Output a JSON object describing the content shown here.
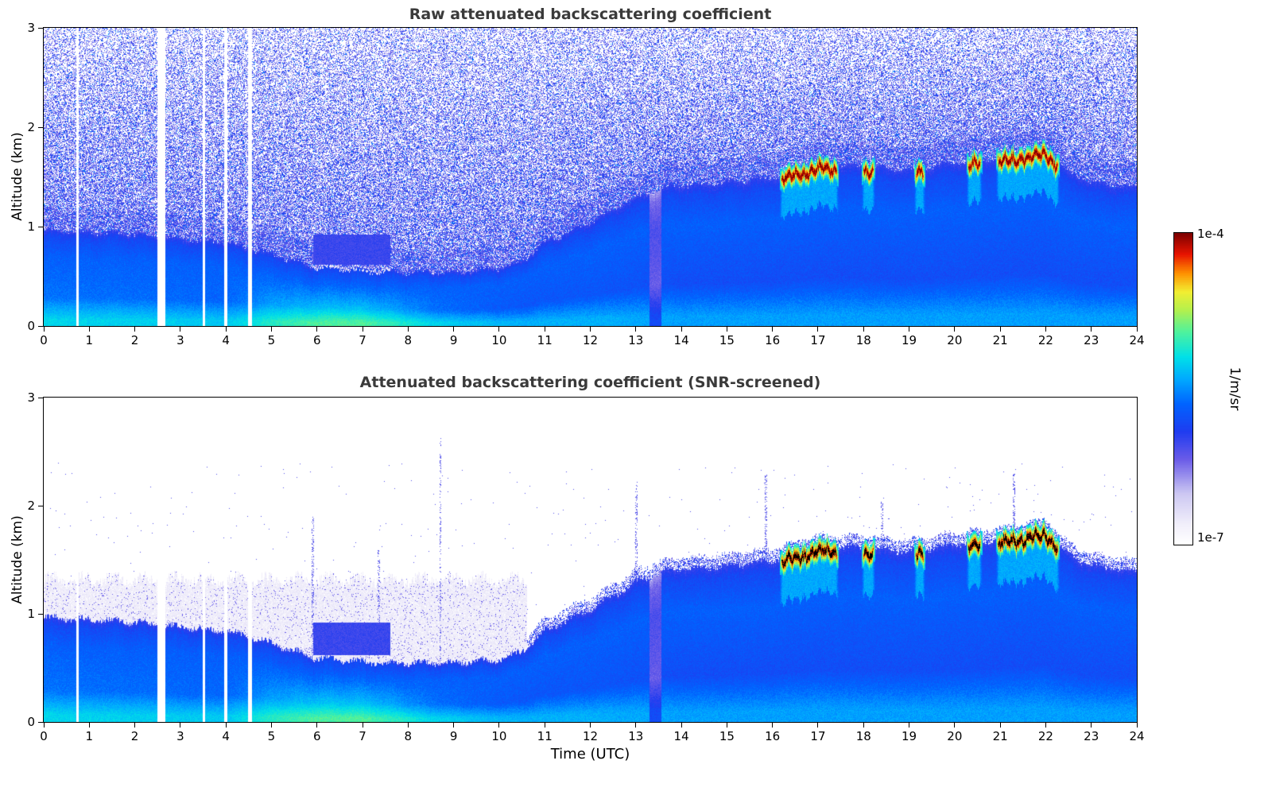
{
  "xlabel": "Time (UTC)",
  "colorbar": {
    "label": "1/m/sr",
    "top_label": "1e-4",
    "bottom_label": "1e-7",
    "scale": "log"
  },
  "chart_data": [
    {
      "type": "heatmap",
      "title": "Raw attenuated backscattering coefficient",
      "ylabel": "Altitude (km)",
      "xlim": [
        0,
        24
      ],
      "ylim": [
        0,
        3
      ],
      "x_ticks": [
        0,
        1,
        2,
        3,
        4,
        5,
        6,
        7,
        8,
        9,
        10,
        11,
        12,
        13,
        14,
        15,
        16,
        17,
        18,
        19,
        20,
        21,
        22,
        23,
        24
      ],
      "y_ticks": [
        0,
        1,
        2,
        3
      ],
      "colorscale": {
        "min": "1e-7",
        "max": "1e-4",
        "units": "1/m/sr",
        "scale": "log"
      },
      "screened": false,
      "seed": 7
    },
    {
      "type": "heatmap",
      "title": "Attenuated backscattering coefficient (SNR-screened)",
      "ylabel": "Altitude (km)",
      "xlim": [
        0,
        24
      ],
      "ylim": [
        0,
        3
      ],
      "x_ticks": [
        0,
        1,
        2,
        3,
        4,
        5,
        6,
        7,
        8,
        9,
        10,
        11,
        12,
        13,
        14,
        15,
        16,
        17,
        18,
        19,
        20,
        21,
        22,
        23,
        24
      ],
      "y_ticks": [
        0,
        1,
        2,
        3
      ],
      "colorscale": {
        "min": "1e-7",
        "max": "1e-4",
        "units": "1/m/sr",
        "scale": "log"
      },
      "screened": true,
      "seed": 99
    }
  ],
  "field_model": {
    "bl_top_km": [
      [
        0,
        0.97
      ],
      [
        1,
        0.95
      ],
      [
        2,
        0.93
      ],
      [
        3,
        0.88
      ],
      [
        4,
        0.85
      ],
      [
        5,
        0.73
      ],
      [
        5.8,
        0.62
      ],
      [
        7,
        0.58
      ],
      [
        8,
        0.55
      ],
      [
        9,
        0.55
      ],
      [
        10,
        0.58
      ],
      [
        10.5,
        0.66
      ],
      [
        11,
        0.85
      ],
      [
        12,
        1.05
      ],
      [
        13,
        1.3
      ],
      [
        13.6,
        1.4
      ],
      [
        14,
        1.42
      ],
      [
        15,
        1.45
      ],
      [
        16,
        1.5
      ],
      [
        17,
        1.63
      ],
      [
        18,
        1.62
      ],
      [
        19,
        1.58
      ],
      [
        20,
        1.65
      ],
      [
        21,
        1.7
      ],
      [
        22,
        1.78
      ],
      [
        22.5,
        1.55
      ],
      [
        23,
        1.45
      ],
      [
        24,
        1.4
      ]
    ],
    "surface_u": [
      [
        0,
        0.57
      ],
      [
        2,
        0.56
      ],
      [
        4,
        0.55
      ],
      [
        5,
        0.62
      ],
      [
        6,
        0.66
      ],
      [
        7,
        0.66
      ],
      [
        7.8,
        0.62
      ],
      [
        8.5,
        0.57
      ],
      [
        9.5,
        0.54
      ],
      [
        10.5,
        0.52
      ],
      [
        12,
        0.52
      ],
      [
        14,
        0.5
      ],
      [
        16,
        0.5
      ],
      [
        18,
        0.5
      ],
      [
        20,
        0.5
      ],
      [
        22,
        0.5
      ],
      [
        24,
        0.5
      ]
    ],
    "cloud_segments": [
      [
        16.15,
        17.45
      ],
      [
        17.95,
        18.25
      ],
      [
        19.1,
        19.35
      ],
      [
        20.25,
        20.6
      ],
      [
        20.9,
        22.3
      ]
    ],
    "gaps": [
      [
        0.7,
        0.76
      ],
      [
        2.48,
        2.66
      ],
      [
        3.48,
        3.54
      ],
      [
        3.96,
        4.02
      ],
      [
        4.48,
        4.56
      ]
    ],
    "dark_streaks": [
      [
        13.3,
        13.55
      ]
    ],
    "elevated_layer": {
      "t0": 5.9,
      "t1": 7.6,
      "a0": 0.62,
      "a1": 0.92
    },
    "pale_residual": {
      "t_end": 10.6,
      "top_km": 1.32
    },
    "spikes": [
      [
        5.9,
        1.9
      ],
      [
        7.35,
        1.6
      ],
      [
        8.7,
        2.65
      ],
      [
        13.0,
        2.2
      ],
      [
        15.85,
        2.3
      ],
      [
        18.4,
        2.05
      ],
      [
        21.3,
        2.3
      ]
    ],
    "colormap": [
      [
        0,
        "#ffffff"
      ],
      [
        0.06,
        "#f2f0fb"
      ],
      [
        0.16,
        "#cdc8f2"
      ],
      [
        0.27,
        "#6b5ce8"
      ],
      [
        0.36,
        "#1f3cf0"
      ],
      [
        0.45,
        "#0064ff"
      ],
      [
        0.53,
        "#00aaff"
      ],
      [
        0.6,
        "#00e0e8"
      ],
      [
        0.68,
        "#4ef29e"
      ],
      [
        0.75,
        "#b2f04e"
      ],
      [
        0.81,
        "#f2ee32"
      ],
      [
        0.87,
        "#ff9000"
      ],
      [
        0.93,
        "#e81400"
      ],
      [
        1,
        "#7a0000"
      ]
    ]
  }
}
